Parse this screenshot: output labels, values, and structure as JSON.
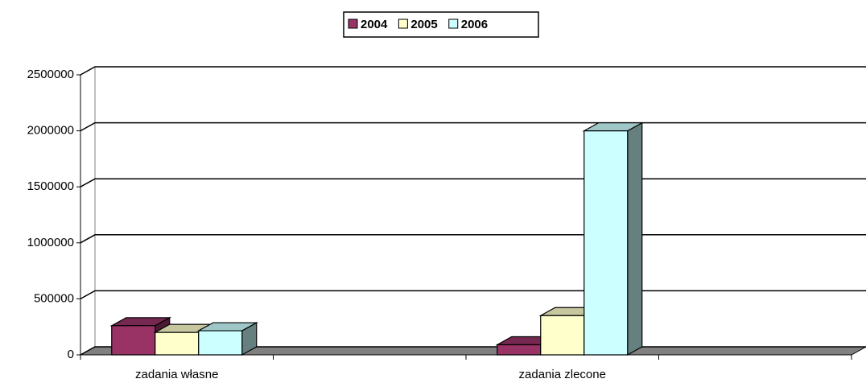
{
  "chart_data": {
    "type": "bar3d",
    "categories": [
      "zadania własne",
      null,
      "zadania zlecone",
      null
    ],
    "series": [
      {
        "name": "2004",
        "color": "#993366",
        "values": [
          260000,
          null,
          90000,
          null
        ]
      },
      {
        "name": "2005",
        "color": "#ffffcc",
        "values": [
          200000,
          null,
          350000,
          null
        ]
      },
      {
        "name": "2006",
        "color": "#ccffff",
        "values": [
          215000,
          null,
          2000000,
          null
        ]
      }
    ],
    "ylim": [
      0,
      2500000
    ],
    "yticks": [
      0,
      500000,
      1000000,
      1500000,
      2000000,
      2500000
    ],
    "grid": true,
    "legend": "top"
  }
}
